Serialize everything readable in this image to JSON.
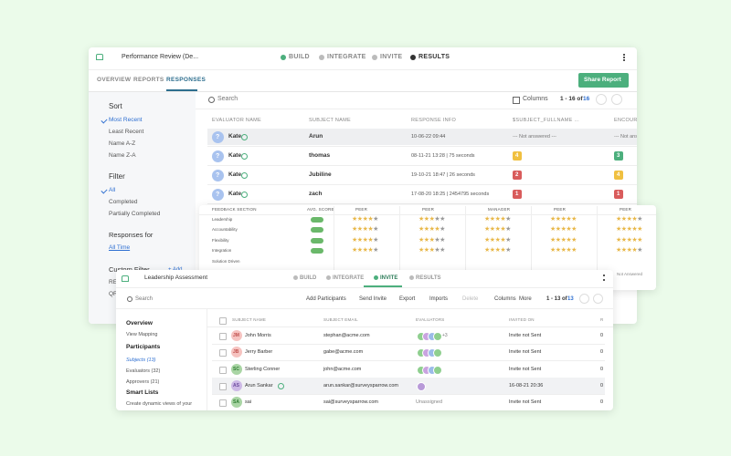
{
  "main": {
    "breadcrumb": "Performance Review (De...",
    "steps": [
      "BUILD",
      "INTEGRATE",
      "INVITE",
      "RESULTS"
    ],
    "tabs": [
      "OVERVIEW",
      "REPORTS",
      "RESPONSES"
    ],
    "share": "Share Report",
    "search": "Search",
    "columns": "Columns",
    "pager": "1 - 16 of",
    "total": "16",
    "sidebar": {
      "sort_title": "Sort",
      "sort": [
        "Most Recent",
        "Least Recent",
        "Name A-Z",
        "Name Z-A"
      ],
      "filter_title": "Filter",
      "filter": [
        "All",
        "Completed",
        "Partially Completed"
      ],
      "responses_title": "Responses for",
      "responses": "All Time",
      "custom_title": "Custom Filter",
      "add": "+ Add",
      "custom": [
        "RE",
        "QR"
      ]
    },
    "table": {
      "avatar": "?",
      "headers": [
        "EVALUATOR NAME",
        "SUBJECT NAME",
        "RESPONSE INFO",
        "$SUBJECT_FULLNAME ...",
        "ENCOURA"
      ],
      "rows": [
        [
          "Kate",
          "Arun",
          "10-06-22 09:44",
          "--- Not answered ---",
          "--- Not ans"
        ],
        [
          "Kate",
          "thomas",
          "08-11-21 13:28 | 75 seconds",
          "4",
          "3"
        ],
        [
          "Kate",
          "Jubiline",
          "19-10-21 18:47 | 26 seconds",
          "2",
          "4"
        ],
        [
          "Kate",
          "zach",
          "17-08-20 18:25 | 2454795 seconds",
          "1",
          "1"
        ]
      ]
    }
  },
  "ratings": {
    "headers": [
      "FEEDBACK SECTION",
      "AVG. SCORE",
      "PEER",
      "PEER",
      "MANAGER",
      "PEER",
      "PEER"
    ],
    "rows": [
      {
        "section": "Leadership",
        "ratings": [
          4,
          3,
          4,
          5,
          4
        ]
      },
      {
        "section": "Accountability",
        "ratings": [
          4,
          4,
          4,
          5,
          5
        ]
      },
      {
        "section": "Flexibility",
        "ratings": [
          4,
          3,
          4,
          5,
          5
        ]
      },
      {
        "section": "Integration",
        "ratings": [
          4,
          3,
          4,
          5,
          4
        ]
      },
      {
        "section": "Solution Driven"
      }
    ],
    "note": "Not Answered"
  },
  "assessment": {
    "title": "Leadership Assessment",
    "steps": [
      "BUILD",
      "INTEGRATE",
      "INVITE",
      "RESULTS"
    ],
    "search": "Search",
    "tools": [
      "Add Participants",
      "Send Invite",
      "Export",
      "Imports",
      "Delete",
      "Columns",
      "More"
    ],
    "pager": "1 - 13 of",
    "total": "13",
    "sidebar": [
      "Overview",
      "View Mapping",
      "Participants",
      "Subjects (13)",
      "Evaluators (32)",
      "Approvers (21)",
      "Smart Lists",
      "Create dynamic views of your"
    ],
    "table": {
      "headers": [
        "SUBJECT NAME",
        "SUBJECT EMAIL",
        "EVALUATORS",
        "INVITED ON",
        "R"
      ],
      "rows": [
        {
          "initials": "JM",
          "name": "John Morris",
          "email": "stephan@acme.com",
          "more": "+3",
          "invited": "Invite not Sent",
          "r": "0"
        },
        {
          "initials": "JB",
          "name": "Jerry Barber",
          "email": "gabe@acme.com",
          "invited": "Invite not Sent",
          "r": "0"
        },
        {
          "initials": "SC",
          "name": "Sterling Conner",
          "email": "john@acme.com",
          "invited": "Invite not Sent",
          "r": "0"
        },
        {
          "initials": "AS",
          "name": "Arun Sankar",
          "email": "arun.sankar@surveysparrow.com",
          "invited": "16-08-21 20:36",
          "r": "0"
        },
        {
          "initials": "SA",
          "name": "sai",
          "email": "sai@surveysparrow.com",
          "unassigned": "Unassigned",
          "invited": "Invite not Sent",
          "r": "0"
        }
      ]
    }
  }
}
